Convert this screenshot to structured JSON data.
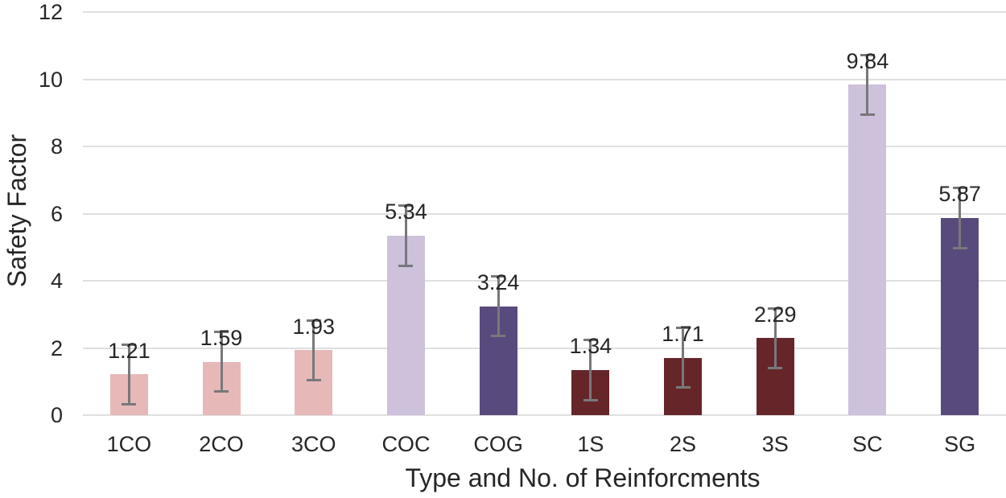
{
  "chart_data": {
    "type": "bar",
    "title": "",
    "ylabel": "Safety Factor",
    "xlabel": "Type and No. of Reinforcments",
    "categories": [
      "1CO",
      "2CO",
      "3CO",
      "COC",
      "COG",
      "1S",
      "2S",
      "3S",
      "SC",
      "SG"
    ],
    "values": [
      1.21,
      1.59,
      1.93,
      5.34,
      3.24,
      1.34,
      1.71,
      2.29,
      9.84,
      5.87
    ],
    "value_labels": [
      "1.21",
      "1.59",
      "1.93",
      "5.34",
      "3.24",
      "1.34",
      "1.71",
      "2.29",
      "9.84",
      "5.87"
    ],
    "errors": [
      0.9,
      0.9,
      0.9,
      0.9,
      0.9,
      0.9,
      0.9,
      0.9,
      0.9,
      0.9
    ],
    "ylim": [
      0,
      12
    ],
    "yticks": [
      "0",
      "2",
      "4",
      "6",
      "8",
      "10",
      "12"
    ],
    "grid": true,
    "legend": "none",
    "bar_color_keys": [
      "pink",
      "pink",
      "pink",
      "lavender",
      "purple",
      "maroon",
      "maroon",
      "maroon",
      "lavender",
      "purple"
    ],
    "palette": {
      "pink": "#e7b8b8",
      "lavender": "#cdc1dc",
      "purple": "#594a7d",
      "maroon": "#662629"
    },
    "style_colors": {
      "gridline": "#dfdfdf",
      "error_bar": "#78787b",
      "text": "#262626"
    }
  }
}
